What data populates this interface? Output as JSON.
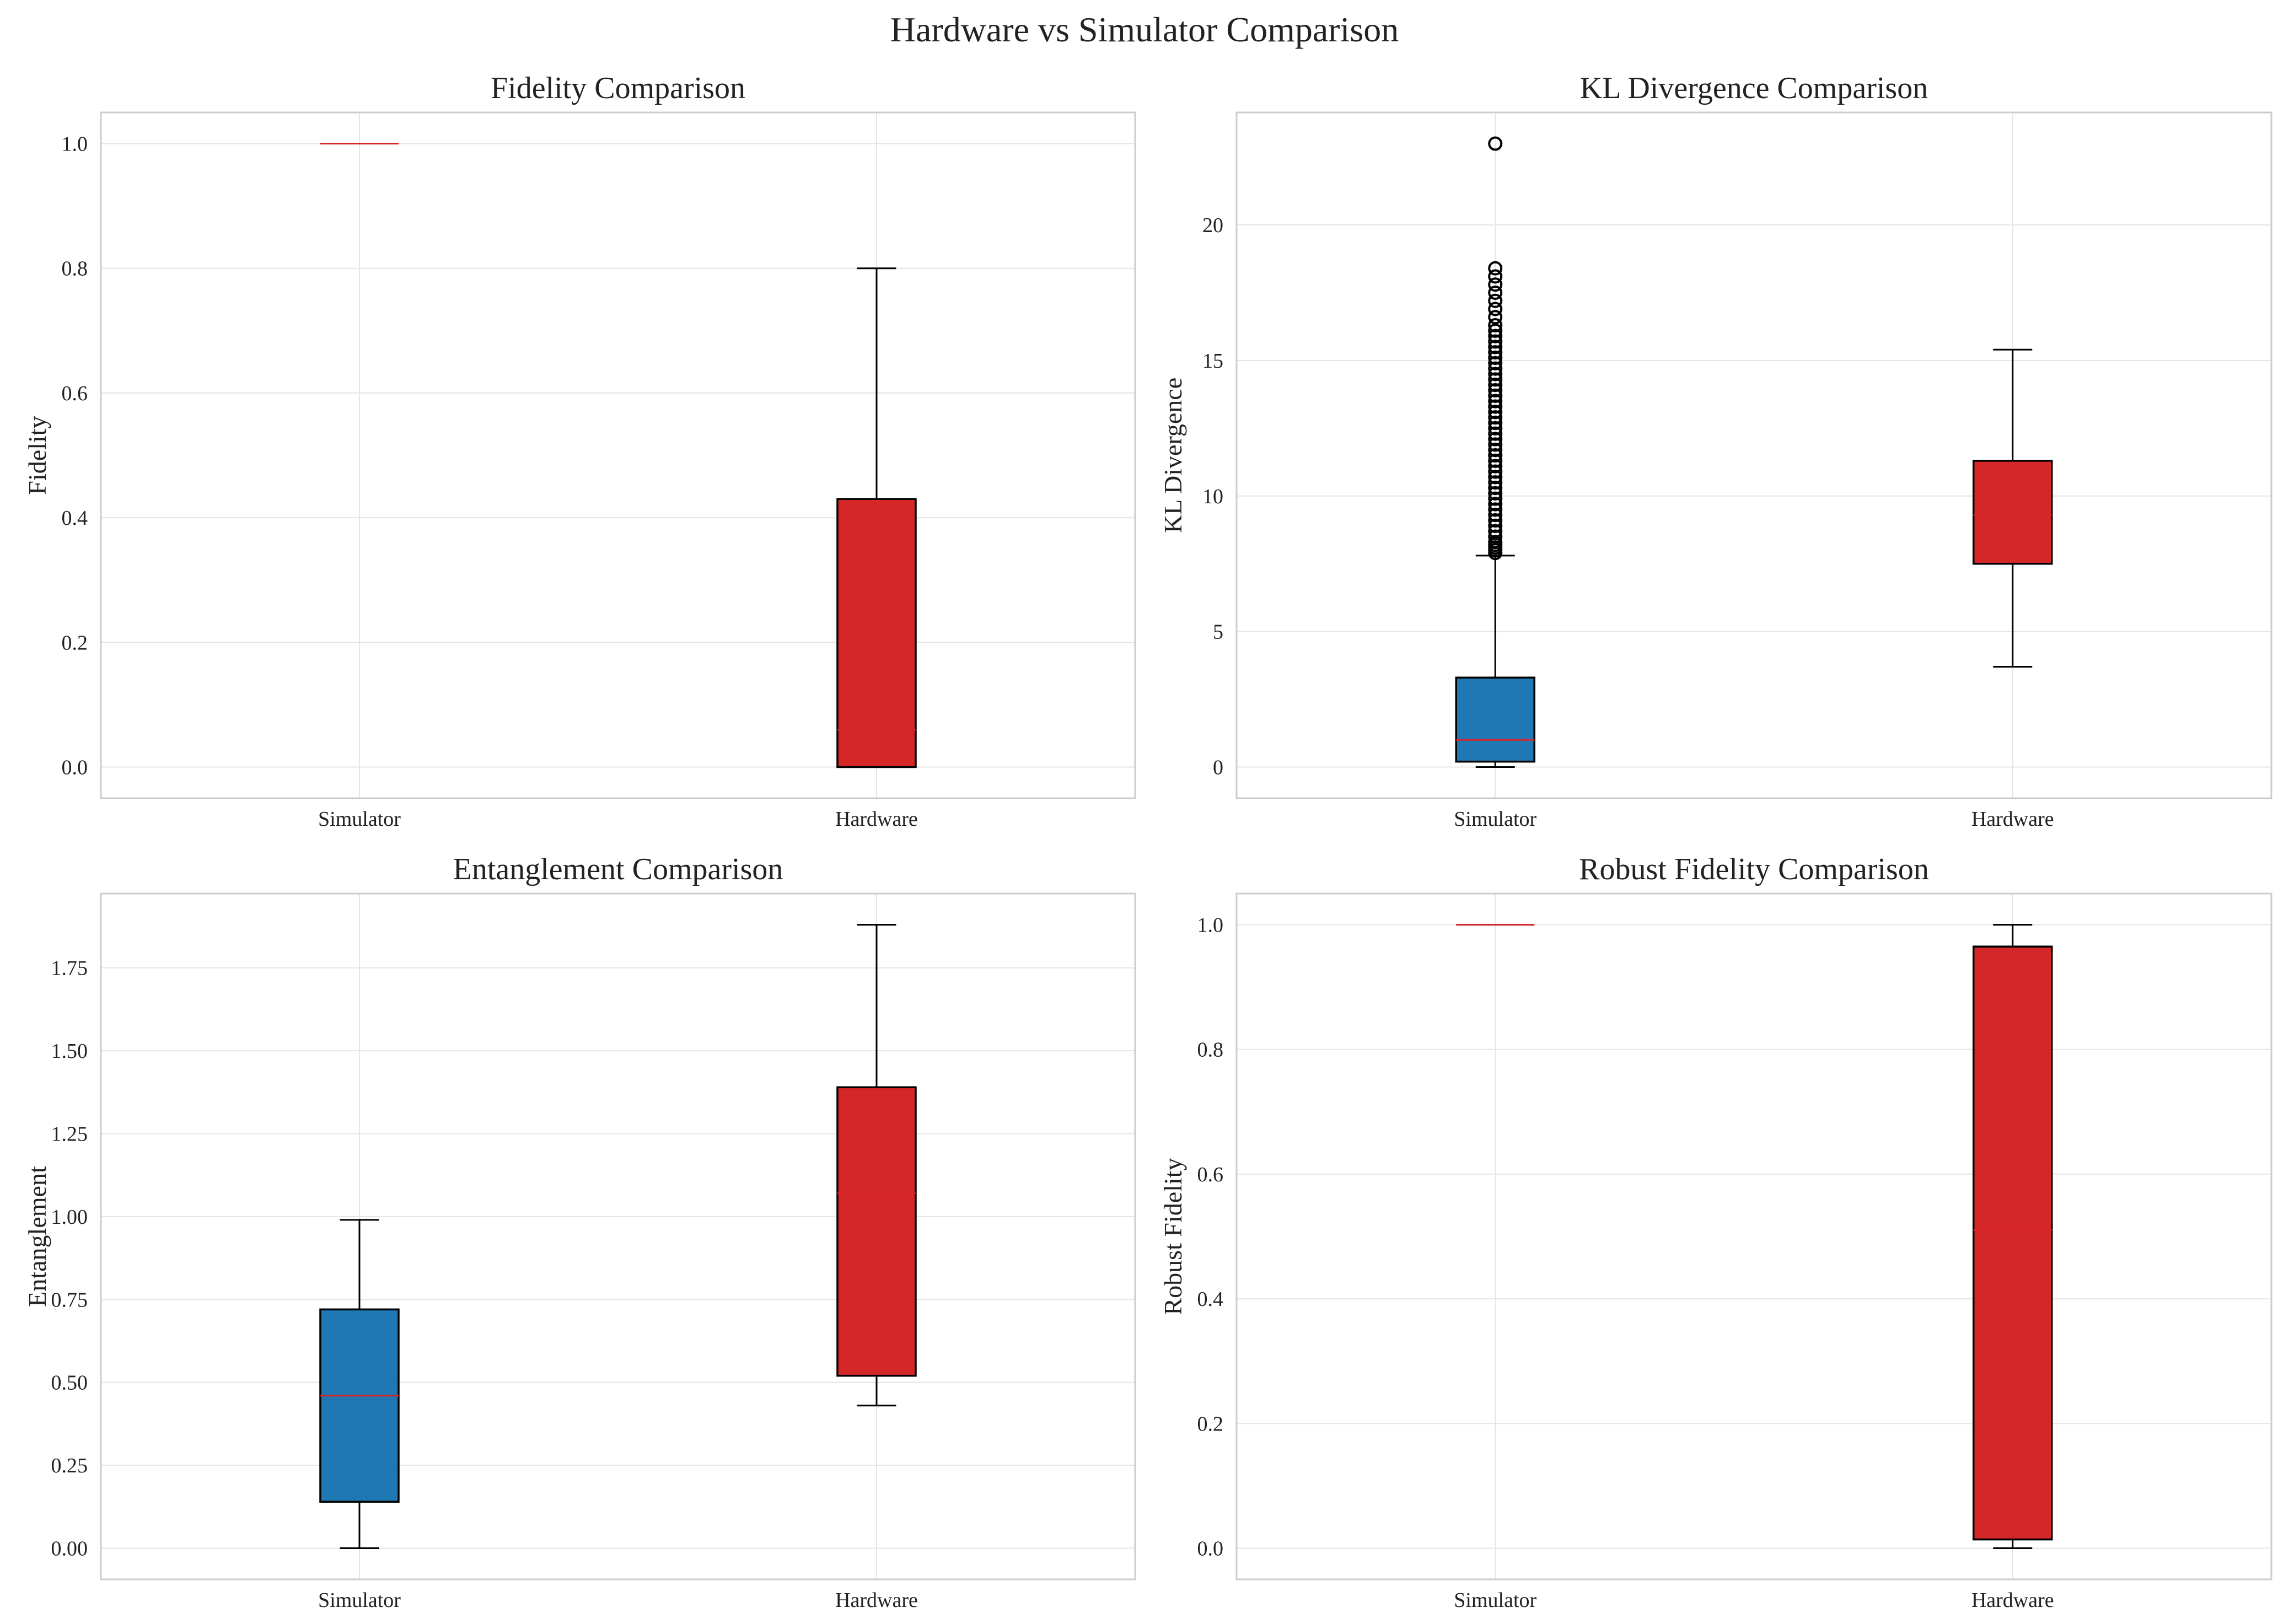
{
  "figure": {
    "title": "Hardware vs Simulator Comparison"
  },
  "colors": {
    "simulator": "#1f77b4",
    "hardware": "#d62728",
    "median": "#d62728",
    "grid": "#e5e5e5",
    "frame": "#cccccc",
    "box_edge": "#000000"
  },
  "chart_data": [
    {
      "type": "box",
      "title": "Fidelity Comparison",
      "xlabel": "",
      "ylabel": "Fidelity",
      "categories": [
        "Simulator",
        "Hardware"
      ],
      "ylim": [
        -0.05,
        1.05
      ],
      "yticks": [
        0.0,
        0.2,
        0.4,
        0.6,
        0.8,
        1.0
      ],
      "ytick_labels": [
        "0.0",
        "0.2",
        "0.4",
        "0.6",
        "0.8",
        "1.0"
      ],
      "grid": true,
      "boxes": [
        {
          "name": "Simulator",
          "whisker_low": 1.0,
          "q1": 1.0,
          "median": 1.0,
          "q3": 1.0,
          "whisker_high": 1.0,
          "outliers": []
        },
        {
          "name": "Hardware",
          "whisker_low": 0.0,
          "q1": 0.0,
          "median": 0.06,
          "q3": 0.43,
          "whisker_high": 0.8,
          "outliers": []
        }
      ]
    },
    {
      "type": "box",
      "title": "KL Divergence Comparison",
      "xlabel": "",
      "ylabel": "KL Divergence",
      "categories": [
        "Simulator",
        "Hardware"
      ],
      "ylim": [
        -1.15,
        24.15
      ],
      "yticks": [
        0,
        5,
        10,
        15,
        20
      ],
      "ytick_labels": [
        "0",
        "5",
        "10",
        "15",
        "20"
      ],
      "grid": true,
      "boxes": [
        {
          "name": "Simulator",
          "whisker_low": 0.0,
          "q1": 0.2,
          "median": 1.0,
          "q3": 3.3,
          "whisker_high": 7.8,
          "outliers": [
            7.9,
            8.0,
            8.1,
            8.2,
            8.3,
            8.5,
            8.7,
            8.9,
            9.1,
            9.3,
            9.5,
            9.7,
            9.9,
            10.1,
            10.3,
            10.5,
            10.7,
            10.9,
            11.1,
            11.3,
            11.5,
            11.7,
            11.9,
            12.1,
            12.3,
            12.5,
            12.7,
            12.9,
            13.1,
            13.3,
            13.5,
            13.7,
            13.9,
            14.1,
            14.3,
            14.5,
            14.7,
            14.9,
            15.1,
            15.3,
            15.5,
            15.7,
            15.9,
            16.1,
            16.3,
            16.6,
            16.9,
            17.2,
            17.5,
            17.8,
            18.1,
            18.4,
            23.0
          ]
        },
        {
          "name": "Hardware",
          "whisker_low": 3.7,
          "q1": 7.5,
          "median": 9.3,
          "q3": 11.3,
          "whisker_high": 15.4,
          "outliers": []
        }
      ]
    },
    {
      "type": "box",
      "title": "Entanglement Comparison",
      "xlabel": "",
      "ylabel": "Entanglement",
      "categories": [
        "Simulator",
        "Hardware"
      ],
      "ylim": [
        -0.094,
        1.974
      ],
      "yticks": [
        0.0,
        0.25,
        0.5,
        0.75,
        1.0,
        1.25,
        1.5,
        1.75
      ],
      "ytick_labels": [
        "0.00",
        "0.25",
        "0.50",
        "0.75",
        "1.00",
        "1.25",
        "1.50",
        "1.75"
      ],
      "grid": true,
      "boxes": [
        {
          "name": "Simulator",
          "whisker_low": 0.0,
          "q1": 0.14,
          "median": 0.46,
          "q3": 0.72,
          "whisker_high": 0.99,
          "outliers": []
        },
        {
          "name": "Hardware",
          "whisker_low": 0.43,
          "q1": 0.52,
          "median": 1.07,
          "q3": 1.39,
          "whisker_high": 1.88,
          "outliers": []
        }
      ]
    },
    {
      "type": "box",
      "title": "Robust Fidelity Comparison",
      "xlabel": "",
      "ylabel": "Robust Fidelity",
      "categories": [
        "Simulator",
        "Hardware"
      ],
      "ylim": [
        -0.05,
        1.05
      ],
      "yticks": [
        0.0,
        0.2,
        0.4,
        0.6,
        0.8,
        1.0
      ],
      "ytick_labels": [
        "0.0",
        "0.2",
        "0.4",
        "0.6",
        "0.8",
        "1.0"
      ],
      "grid": true,
      "boxes": [
        {
          "name": "Simulator",
          "whisker_low": 1.0,
          "q1": 1.0,
          "median": 1.0,
          "q3": 1.0,
          "whisker_high": 1.0,
          "outliers": []
        },
        {
          "name": "Hardware",
          "whisker_low": 0.0,
          "q1": 0.014,
          "median": 0.51,
          "q3": 0.965,
          "whisker_high": 1.0,
          "outliers": []
        }
      ]
    }
  ]
}
